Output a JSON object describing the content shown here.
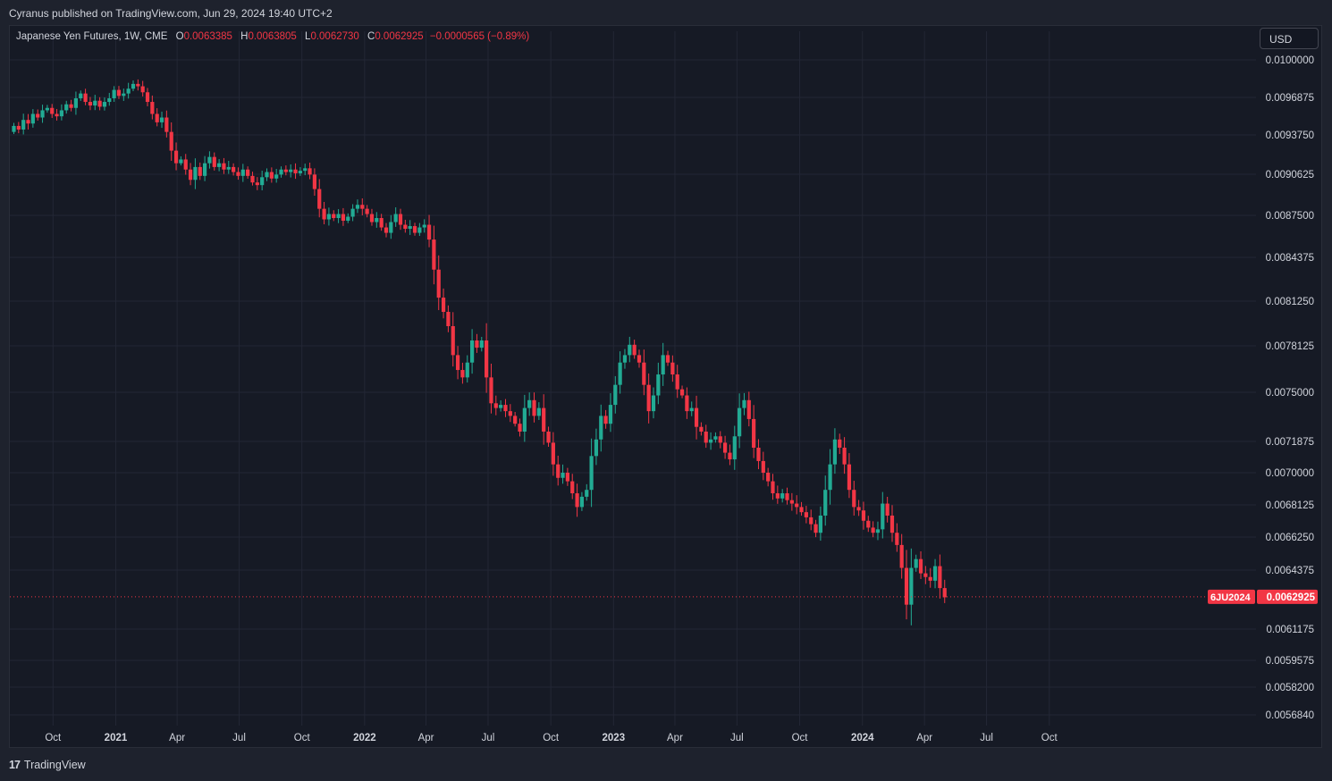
{
  "header": {
    "publisher": "Cyranus published on TradingView.com, Jun 29, 2024 19:40 UTC+2"
  },
  "legend": {
    "symbol": "Japanese Yen Futures, 1W, CME",
    "open_label": "O",
    "open": "0.0063385",
    "high_label": "H",
    "high": "0.0063805",
    "low_label": "L",
    "low": "0.0062730",
    "close_label": "C",
    "close": "0.0062925",
    "change": "−0.0000565 (−0.89%)"
  },
  "currency": "USD",
  "footer": {
    "logo_mark": "17",
    "brand": "TradingView"
  },
  "colors": {
    "up": "#22ab94",
    "down": "#f23645",
    "grid": "#232735",
    "background": "#161a25"
  },
  "chart_data": {
    "type": "candlestick",
    "title": "",
    "xlabel": "",
    "ylabel": "",
    "ylim": [
      0.0056,
      0.0101
    ],
    "y_ticks": [
      "0.0100000",
      "0.0096875",
      "0.0093750",
      "0.0090625",
      "0.0087500",
      "0.0084375",
      "0.0081250",
      "0.0078125",
      "0.0075000",
      "0.0071875",
      "0.0070000",
      "0.0068125",
      "0.0066250",
      "0.0064375",
      "0.0061175",
      "0.0059575",
      "0.0058200",
      "0.0056840"
    ],
    "x_ticks": [
      {
        "label": "Oct",
        "date": "2020-10-01",
        "bold": false
      },
      {
        "label": "2021",
        "date": "2021-01-01",
        "bold": true
      },
      {
        "label": "Apr",
        "date": "2021-04-01",
        "bold": false
      },
      {
        "label": "Jul",
        "date": "2021-07-01",
        "bold": false
      },
      {
        "label": "Oct",
        "date": "2021-10-01",
        "bold": false
      },
      {
        "label": "2022",
        "date": "2022-01-01",
        "bold": true
      },
      {
        "label": "Apr",
        "date": "2022-04-01",
        "bold": false
      },
      {
        "label": "Jul",
        "date": "2022-07-01",
        "bold": false
      },
      {
        "label": "Oct",
        "date": "2022-10-01",
        "bold": false
      },
      {
        "label": "2023",
        "date": "2023-01-01",
        "bold": true
      },
      {
        "label": "Apr",
        "date": "2023-04-01",
        "bold": false
      },
      {
        "label": "Jul",
        "date": "2023-07-01",
        "bold": false
      },
      {
        "label": "Oct",
        "date": "2023-10-01",
        "bold": false
      },
      {
        "label": "2024",
        "date": "2024-01-01",
        "bold": true
      },
      {
        "label": "Apr",
        "date": "2024-04-01",
        "bold": false
      },
      {
        "label": "Jul",
        "date": "2024-07-01",
        "bold": false
      },
      {
        "label": "Oct",
        "date": "2024-10-01",
        "bold": false
      }
    ],
    "weekly_closes": {
      "start_week": "2020-07-31",
      "open_first": 0.0094,
      "close": [
        0.00945,
        0.00942,
        0.0095,
        0.00947,
        0.00955,
        0.00952,
        0.00958,
        0.0096,
        0.00955,
        0.00953,
        0.00958,
        0.00963,
        0.0096,
        0.00968,
        0.00972,
        0.00965,
        0.00962,
        0.00966,
        0.00961,
        0.00965,
        0.00968,
        0.00975,
        0.0097,
        0.00972,
        0.00976,
        0.0098,
        0.00978,
        0.00973,
        0.00965,
        0.00955,
        0.00948,
        0.00952,
        0.0094,
        0.00925,
        0.00915,
        0.00918,
        0.0091,
        0.00902,
        0.00912,
        0.00905,
        0.00915,
        0.0092,
        0.00912,
        0.00915,
        0.0091,
        0.00912,
        0.00908,
        0.00905,
        0.0091,
        0.00905,
        0.009,
        0.00898,
        0.00904,
        0.00908,
        0.00903,
        0.00906,
        0.0091,
        0.00908,
        0.0091,
        0.00907,
        0.00909,
        0.00911,
        0.00906,
        0.00895,
        0.0088,
        0.00872,
        0.00876,
        0.00873,
        0.00876,
        0.00871,
        0.00874,
        0.0088,
        0.00883,
        0.0088,
        0.00876,
        0.0087,
        0.00873,
        0.00866,
        0.00862,
        0.0087,
        0.00876,
        0.00868,
        0.00865,
        0.00867,
        0.00862,
        0.00866,
        0.00868,
        0.00857,
        0.00835,
        0.00815,
        0.00805,
        0.00795,
        0.00775,
        0.00765,
        0.0076,
        0.0077,
        0.00785,
        0.0078,
        0.00785,
        0.0076,
        0.00743,
        0.0074,
        0.00742,
        0.00738,
        0.00735,
        0.0073,
        0.00725,
        0.0074,
        0.00745,
        0.00735,
        0.0074,
        0.00725,
        0.00718,
        0.00705,
        0.00697,
        0.007,
        0.00695,
        0.00688,
        0.0068,
        0.00686,
        0.0069,
        0.0071,
        0.0072,
        0.00735,
        0.0073,
        0.00742,
        0.00755,
        0.0077,
        0.00775,
        0.00782,
        0.00775,
        0.0077,
        0.00755,
        0.00738,
        0.00748,
        0.00762,
        0.00775,
        0.0077,
        0.00762,
        0.00752,
        0.00748,
        0.00738,
        0.0074,
        0.00728,
        0.00725,
        0.00718,
        0.0072,
        0.00722,
        0.00718,
        0.00712,
        0.00708,
        0.00722,
        0.0074,
        0.00745,
        0.00733,
        0.00715,
        0.00707,
        0.007,
        0.00695,
        0.00688,
        0.00685,
        0.00688,
        0.00684,
        0.00682,
        0.0068,
        0.00677,
        0.00674,
        0.0067,
        0.00665,
        0.00675,
        0.0069,
        0.00705,
        0.0072,
        0.00715,
        0.00705,
        0.0069,
        0.0068,
        0.00678,
        0.00672,
        0.00668,
        0.00665,
        0.00667,
        0.00682,
        0.00675,
        0.00665,
        0.00658,
        0.00645,
        0.00625,
        0.00645,
        0.0065,
        0.00642,
        0.0064,
        0.00638,
        0.00646,
        0.00634,
        0.00629
      ]
    },
    "last_price": {
      "symbol_label": "6JU2024",
      "value": "0.0062925",
      "y": 0.0062925
    }
  }
}
